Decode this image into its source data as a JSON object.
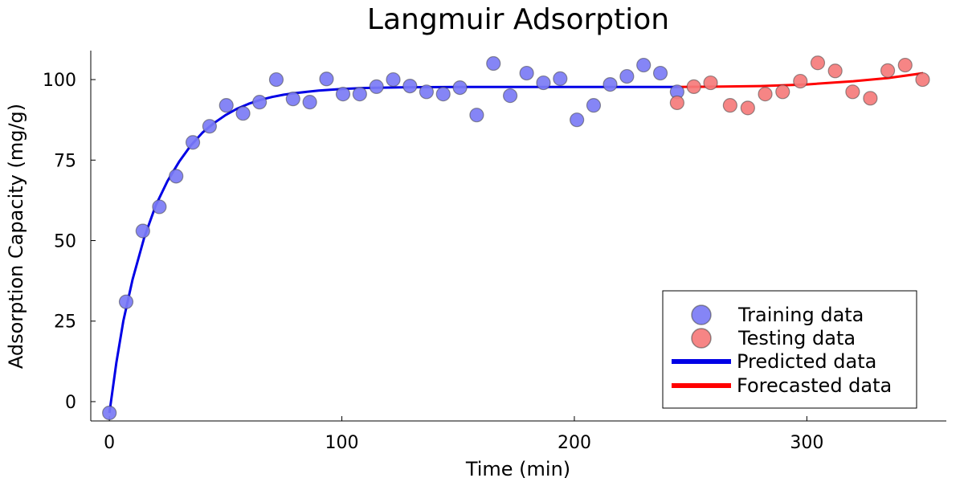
{
  "chart_data": {
    "type": "scatter",
    "title": "Langmuir Adsorption",
    "xlabel": "Time (min)",
    "ylabel": "Adsorption Capacity (mg/g)",
    "xlim": [
      -8,
      360
    ],
    "ylim": [
      -6,
      109
    ],
    "xticks": [
      0,
      100,
      200,
      300
    ],
    "yticks": [
      0,
      25,
      50,
      75,
      100
    ],
    "grid": false,
    "legend_position": "bottom-right",
    "colors": {
      "training": "#7b7bf5",
      "testing": "#f57b7b",
      "predicted": "#0000e6",
      "forecasted": "#ff0000"
    },
    "legend": [
      {
        "key": "training",
        "label": "Training data"
      },
      {
        "key": "testing",
        "label": "Testing data"
      },
      {
        "key": "predicted",
        "label": "Predicted data"
      },
      {
        "key": "forecasted",
        "label": "Forecasted data"
      }
    ],
    "series": [
      {
        "key": "training",
        "name": "Training data",
        "kind": "scatter",
        "points": [
          [
            0,
            -3.5
          ],
          [
            7.2,
            31
          ],
          [
            14.4,
            53
          ],
          [
            21.5,
            60.5
          ],
          [
            28.7,
            70
          ],
          [
            35.9,
            80.5
          ],
          [
            43.1,
            85.5
          ],
          [
            50.3,
            92
          ],
          [
            57.5,
            89.5
          ],
          [
            64.6,
            93
          ],
          [
            71.8,
            100
          ],
          [
            79,
            94
          ],
          [
            86.2,
            93
          ],
          [
            93.4,
            100.2
          ],
          [
            100.5,
            95.5
          ],
          [
            107.7,
            95.5
          ],
          [
            114.9,
            97.8
          ],
          [
            122.1,
            100
          ],
          [
            129.3,
            98
          ],
          [
            136.4,
            96.2
          ],
          [
            143.6,
            95.5
          ],
          [
            150.8,
            97.5
          ],
          [
            158,
            89
          ],
          [
            165.2,
            105
          ],
          [
            172.4,
            95
          ],
          [
            179.5,
            102
          ],
          [
            186.7,
            99
          ],
          [
            193.9,
            100.3
          ],
          [
            201.1,
            87.5
          ],
          [
            208.3,
            92
          ],
          [
            215.4,
            98.5
          ],
          [
            222.6,
            101
          ],
          [
            229.8,
            104.5
          ],
          [
            237,
            102
          ],
          [
            244.2,
            96.2
          ]
        ]
      },
      {
        "key": "testing",
        "name": "Testing data",
        "kind": "scatter",
        "points": [
          [
            244.2,
            92.8
          ],
          [
            251.4,
            97.8
          ],
          [
            258.6,
            99
          ],
          [
            267,
            92
          ],
          [
            274.6,
            91.2
          ],
          [
            282.1,
            95.5
          ],
          [
            289.6,
            96.2
          ],
          [
            297.2,
            99.5
          ],
          [
            304.7,
            105.2
          ],
          [
            312.2,
            102.7
          ],
          [
            319.7,
            96.2
          ],
          [
            327.3,
            94.2
          ],
          [
            334.8,
            102.8
          ],
          [
            342.3,
            104.5
          ],
          [
            349.8,
            100
          ]
        ]
      },
      {
        "key": "predicted",
        "name": "Predicted data",
        "kind": "line",
        "points": [
          [
            0,
            -3.5
          ],
          [
            3,
            12
          ],
          [
            6,
            25
          ],
          [
            10,
            38
          ],
          [
            15,
            51
          ],
          [
            20,
            61
          ],
          [
            25,
            68.5
          ],
          [
            30,
            74.5
          ],
          [
            35,
            79.5
          ],
          [
            40,
            83.5
          ],
          [
            45,
            86.5
          ],
          [
            50,
            89
          ],
          [
            55,
            91
          ],
          [
            60,
            92.5
          ],
          [
            65,
            93.7
          ],
          [
            70,
            94.6
          ],
          [
            75,
            95.3
          ],
          [
            80,
            95.8
          ],
          [
            90,
            96.6
          ],
          [
            100,
            97.1
          ],
          [
            110,
            97.4
          ],
          [
            125,
            97.6
          ],
          [
            150,
            97.7
          ],
          [
            200,
            97.7
          ],
          [
            244.2,
            97.7
          ]
        ]
      },
      {
        "key": "forecasted",
        "name": "Forecasted data",
        "kind": "line",
        "points": [
          [
            244.2,
            97.7
          ],
          [
            260,
            97.8
          ],
          [
            280,
            98
          ],
          [
            300,
            98.5
          ],
          [
            320,
            99.5
          ],
          [
            335,
            100.5
          ],
          [
            350,
            102
          ]
        ]
      }
    ]
  }
}
